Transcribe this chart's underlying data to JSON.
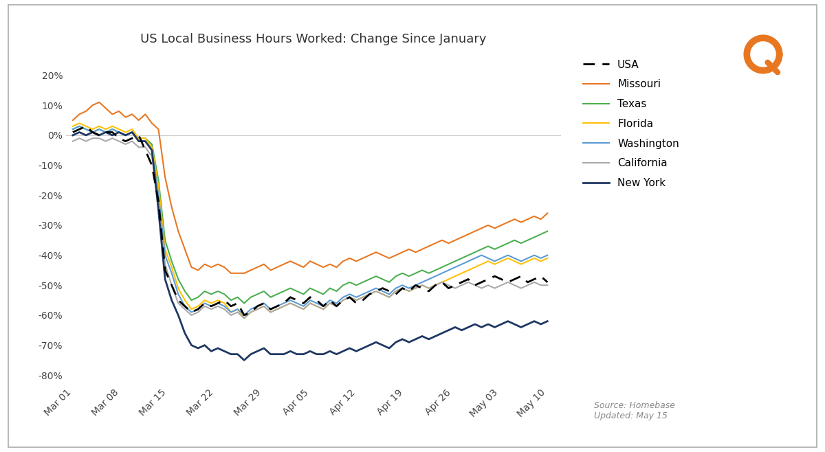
{
  "title": "US Local Business Hours Worked: Change Since January",
  "source_text": "Source: Homebase\nUpdated: May 15",
  "x_labels": [
    "Mar 01",
    "Mar 08",
    "Mar 15",
    "Mar 22",
    "Mar 29",
    "Apr 05",
    "Apr 12",
    "Apr 19",
    "Apr 26",
    "May 03",
    "May 10"
  ],
  "yticks": [
    0.2,
    0.1,
    0.0,
    -0.1,
    -0.2,
    -0.3,
    -0.4,
    -0.5,
    -0.6,
    -0.7,
    -0.8
  ],
  "ylim": [
    -0.83,
    0.27
  ],
  "series": {
    "USA": {
      "color": "#000000",
      "linestyle": "dashed",
      "linewidth": 2.0,
      "values": [
        0.01,
        0.01,
        -0.05,
        -0.48,
        -0.58,
        -0.59,
        -0.58,
        -0.56,
        -0.57,
        -0.49,
        -0.49
      ]
    },
    "Missouri": {
      "color": "#E87722",
      "linestyle": "solid",
      "linewidth": 1.5,
      "values": [
        0.05,
        0.11,
        0.07,
        -0.3,
        -0.45,
        -0.46,
        -0.44,
        -0.42,
        -0.39,
        -0.31,
        -0.26
      ]
    },
    "Texas": {
      "color": "#4CAF50",
      "linestyle": "solid",
      "linewidth": 1.5,
      "values": [
        0.02,
        0.01,
        -0.01,
        -0.42,
        -0.54,
        -0.55,
        -0.54,
        -0.52,
        -0.5,
        -0.37,
        -0.33
      ]
    },
    "Florida": {
      "color": "#FFC107",
      "linestyle": "solid",
      "linewidth": 1.5,
      "values": [
        0.03,
        0.02,
        -0.01,
        -0.44,
        -0.57,
        -0.6,
        -0.57,
        -0.55,
        -0.54,
        -0.44,
        -0.41
      ]
    },
    "Washington": {
      "color": "#5B9BD5",
      "linestyle": "solid",
      "linewidth": 1.5,
      "values": [
        0.02,
        0.01,
        -0.02,
        -0.46,
        -0.58,
        -0.59,
        -0.58,
        -0.54,
        -0.53,
        -0.42,
        -0.4
      ]
    },
    "California": {
      "color": "#A9A9A9",
      "linestyle": "solid",
      "linewidth": 1.5,
      "values": [
        -0.02,
        -0.01,
        -0.04,
        -0.5,
        -0.59,
        -0.6,
        -0.59,
        -0.57,
        -0.57,
        -0.51,
        -0.5
      ]
    },
    "New York": {
      "color": "#1F3864",
      "linestyle": "solid",
      "linewidth": 2.0,
      "values": [
        0.0,
        0.0,
        -0.02,
        -0.55,
        -0.72,
        -0.73,
        -0.73,
        -0.72,
        -0.7,
        -0.64,
        -0.62
      ]
    }
  },
  "daily_series": {
    "USA": [
      0.01,
      0.02,
      0.03,
      0.01,
      0.0,
      0.01,
      0.01,
      -0.01,
      -0.02,
      -0.01,
      0.0,
      -0.05,
      -0.1,
      -0.22,
      -0.45,
      -0.5,
      -0.55,
      -0.57,
      -0.59,
      -0.58,
      -0.56,
      -0.57,
      -0.56,
      -0.55,
      -0.57,
      -0.56,
      -0.6,
      -0.59,
      -0.57,
      -0.56,
      -0.58,
      -0.57,
      -0.56,
      -0.54,
      -0.55,
      -0.56,
      -0.54,
      -0.55,
      -0.57,
      -0.55,
      -0.57,
      -0.55,
      -0.54,
      -0.56,
      -0.55,
      -0.53,
      -0.52,
      -0.51,
      -0.52,
      -0.53,
      -0.51,
      -0.52,
      -0.5,
      -0.51,
      -0.52,
      -0.5,
      -0.49,
      -0.51,
      -0.5,
      -0.49,
      -0.48,
      -0.5,
      -0.49,
      -0.48,
      -0.47,
      -0.48,
      -0.49,
      -0.48,
      -0.47,
      -0.49,
      -0.48,
      -0.47,
      -0.49
    ],
    "Missouri": [
      0.05,
      0.07,
      0.08,
      0.1,
      0.11,
      0.09,
      0.07,
      0.08,
      0.06,
      0.07,
      0.05,
      0.07,
      0.04,
      0.02,
      -0.14,
      -0.24,
      -0.32,
      -0.38,
      -0.44,
      -0.45,
      -0.43,
      -0.44,
      -0.43,
      -0.44,
      -0.46,
      -0.46,
      -0.46,
      -0.45,
      -0.44,
      -0.43,
      -0.45,
      -0.44,
      -0.43,
      -0.42,
      -0.43,
      -0.44,
      -0.42,
      -0.43,
      -0.44,
      -0.43,
      -0.44,
      -0.42,
      -0.41,
      -0.42,
      -0.41,
      -0.4,
      -0.39,
      -0.4,
      -0.41,
      -0.4,
      -0.39,
      -0.38,
      -0.39,
      -0.38,
      -0.37,
      -0.36,
      -0.35,
      -0.36,
      -0.35,
      -0.34,
      -0.33,
      -0.32,
      -0.31,
      -0.3,
      -0.31,
      -0.3,
      -0.29,
      -0.28,
      -0.29,
      -0.28,
      -0.27,
      -0.28,
      -0.26
    ],
    "Texas": [
      0.02,
      0.03,
      0.02,
      0.01,
      0.02,
      0.01,
      0.02,
      0.01,
      0.0,
      0.01,
      -0.01,
      -0.01,
      -0.03,
      -0.15,
      -0.35,
      -0.42,
      -0.48,
      -0.52,
      -0.55,
      -0.54,
      -0.52,
      -0.53,
      -0.52,
      -0.53,
      -0.55,
      -0.54,
      -0.56,
      -0.54,
      -0.53,
      -0.52,
      -0.54,
      -0.53,
      -0.52,
      -0.51,
      -0.52,
      -0.53,
      -0.51,
      -0.52,
      -0.53,
      -0.51,
      -0.52,
      -0.5,
      -0.49,
      -0.5,
      -0.49,
      -0.48,
      -0.47,
      -0.48,
      -0.49,
      -0.47,
      -0.46,
      -0.47,
      -0.46,
      -0.45,
      -0.46,
      -0.45,
      -0.44,
      -0.43,
      -0.42,
      -0.41,
      -0.4,
      -0.39,
      -0.38,
      -0.37,
      -0.38,
      -0.37,
      -0.36,
      -0.35,
      -0.36,
      -0.35,
      -0.34,
      -0.33,
      -0.32
    ],
    "Florida": [
      0.03,
      0.04,
      0.03,
      0.02,
      0.03,
      0.02,
      0.03,
      0.02,
      0.01,
      0.02,
      -0.01,
      -0.01,
      -0.04,
      -0.17,
      -0.38,
      -0.44,
      -0.51,
      -0.55,
      -0.58,
      -0.57,
      -0.55,
      -0.56,
      -0.55,
      -0.56,
      -0.59,
      -0.58,
      -0.61,
      -0.59,
      -0.58,
      -0.57,
      -0.59,
      -0.58,
      -0.57,
      -0.56,
      -0.57,
      -0.58,
      -0.56,
      -0.57,
      -0.58,
      -0.56,
      -0.57,
      -0.55,
      -0.54,
      -0.55,
      -0.54,
      -0.53,
      -0.52,
      -0.53,
      -0.54,
      -0.52,
      -0.51,
      -0.52,
      -0.51,
      -0.5,
      -0.51,
      -0.5,
      -0.49,
      -0.48,
      -0.47,
      -0.46,
      -0.45,
      -0.44,
      -0.43,
      -0.42,
      -0.43,
      -0.42,
      -0.41,
      -0.42,
      -0.43,
      -0.42,
      -0.41,
      -0.42,
      -0.41
    ],
    "Washington": [
      0.02,
      0.03,
      0.02,
      0.01,
      0.02,
      0.01,
      0.02,
      0.01,
      0.0,
      0.01,
      -0.02,
      -0.02,
      -0.05,
      -0.2,
      -0.4,
      -0.46,
      -0.53,
      -0.57,
      -0.59,
      -0.58,
      -0.56,
      -0.57,
      -0.56,
      -0.57,
      -0.59,
      -0.58,
      -0.6,
      -0.58,
      -0.57,
      -0.56,
      -0.58,
      -0.57,
      -0.56,
      -0.55,
      -0.56,
      -0.57,
      -0.55,
      -0.56,
      -0.57,
      -0.55,
      -0.56,
      -0.54,
      -0.53,
      -0.54,
      -0.53,
      -0.52,
      -0.51,
      -0.52,
      -0.53,
      -0.51,
      -0.5,
      -0.51,
      -0.5,
      -0.49,
      -0.48,
      -0.47,
      -0.46,
      -0.45,
      -0.44,
      -0.43,
      -0.42,
      -0.41,
      -0.4,
      -0.41,
      -0.42,
      -0.41,
      -0.4,
      -0.41,
      -0.42,
      -0.41,
      -0.4,
      -0.41,
      -0.4
    ],
    "California": [
      -0.02,
      -0.01,
      -0.02,
      -0.01,
      -0.01,
      -0.02,
      -0.01,
      -0.02,
      -0.03,
      -0.02,
      -0.04,
      -0.04,
      -0.07,
      -0.22,
      -0.43,
      -0.5,
      -0.56,
      -0.58,
      -0.6,
      -0.59,
      -0.57,
      -0.58,
      -0.57,
      -0.58,
      -0.6,
      -0.59,
      -0.61,
      -0.59,
      -0.58,
      -0.57,
      -0.59,
      -0.58,
      -0.57,
      -0.56,
      -0.57,
      -0.58,
      -0.56,
      -0.57,
      -0.58,
      -0.56,
      -0.57,
      -0.55,
      -0.54,
      -0.55,
      -0.54,
      -0.53,
      -0.52,
      -0.53,
      -0.54,
      -0.52,
      -0.51,
      -0.52,
      -0.51,
      -0.5,
      -0.51,
      -0.5,
      -0.49,
      -0.5,
      -0.51,
      -0.5,
      -0.49,
      -0.5,
      -0.51,
      -0.5,
      -0.51,
      -0.5,
      -0.49,
      -0.5,
      -0.51,
      -0.5,
      -0.49,
      -0.5,
      -0.5
    ],
    "New York": [
      0.0,
      0.01,
      0.0,
      0.01,
      0.0,
      0.01,
      0.0,
      0.01,
      0.0,
      0.01,
      -0.02,
      -0.02,
      -0.05,
      -0.25,
      -0.48,
      -0.55,
      -0.6,
      -0.66,
      -0.7,
      -0.71,
      -0.7,
      -0.72,
      -0.71,
      -0.72,
      -0.73,
      -0.73,
      -0.75,
      -0.73,
      -0.72,
      -0.71,
      -0.73,
      -0.73,
      -0.73,
      -0.72,
      -0.73,
      -0.73,
      -0.72,
      -0.73,
      -0.73,
      -0.72,
      -0.73,
      -0.72,
      -0.71,
      -0.72,
      -0.71,
      -0.7,
      -0.69,
      -0.7,
      -0.71,
      -0.69,
      -0.68,
      -0.69,
      -0.68,
      -0.67,
      -0.68,
      -0.67,
      -0.66,
      -0.65,
      -0.64,
      -0.65,
      -0.64,
      -0.63,
      -0.64,
      -0.63,
      -0.64,
      -0.63,
      -0.62,
      -0.63,
      -0.64,
      -0.63,
      -0.62,
      -0.63,
      -0.62
    ]
  },
  "background_color": "#FFFFFF",
  "border_color": "#AAAAAA",
  "logo_color": "#E87722"
}
